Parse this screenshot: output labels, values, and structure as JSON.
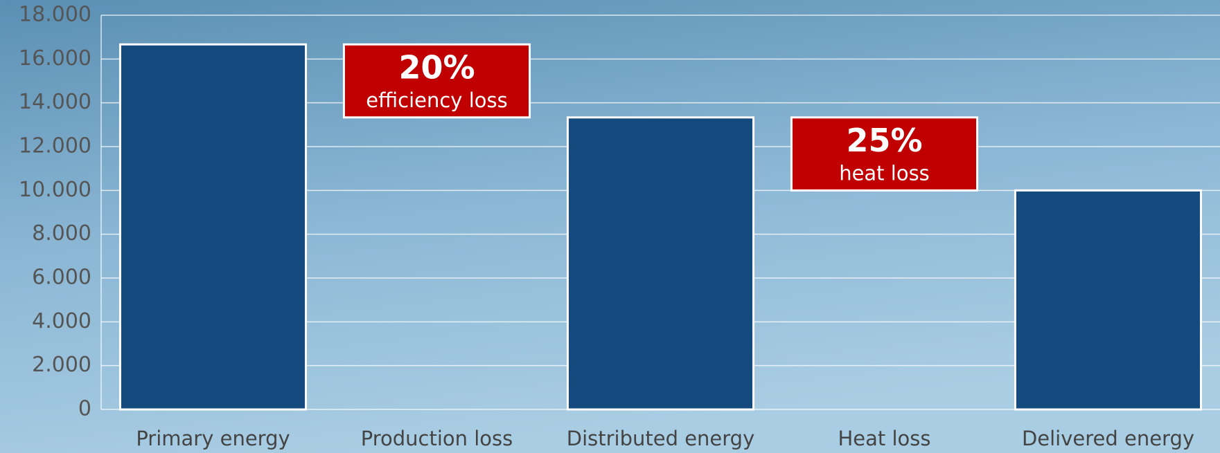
{
  "chart_data": {
    "type": "waterfall",
    "categories": [
      "Primary energy",
      "Production loss",
      "Distributed energy",
      "Heat loss",
      "Delivered energy"
    ],
    "values": [
      16667,
      -3333,
      13333,
      -3333,
      10000
    ],
    "is_total": [
      true,
      false,
      true,
      false,
      true
    ],
    "color": "#154a7e",
    "loss_color": "#c00000",
    "annotations": [
      {
        "title": "20%",
        "text": "efficiency loss"
      },
      {
        "title": "25%",
        "text": "heat loss"
      }
    ],
    "ylim": [
      0,
      18000
    ],
    "yticks": [
      0,
      {
        "value": 2000,
        "label": "2.000"
      },
      {
        "value": 4000,
        "label": "4.000"
      },
      {
        "value": 6000,
        "label": "6.000"
      },
      {
        "value": 8000,
        "label": "8.000"
      },
      {
        "value": 10000,
        "label": "10.000"
      },
      {
        "value": 12000,
        "label": "12.000"
      },
      {
        "value": 14000,
        "label": "14.000"
      },
      {
        "value": 16000,
        "label": "16.000"
      },
      {
        "value": 18000,
        "label": "18.000"
      }
    ],
    "grid": true
  }
}
